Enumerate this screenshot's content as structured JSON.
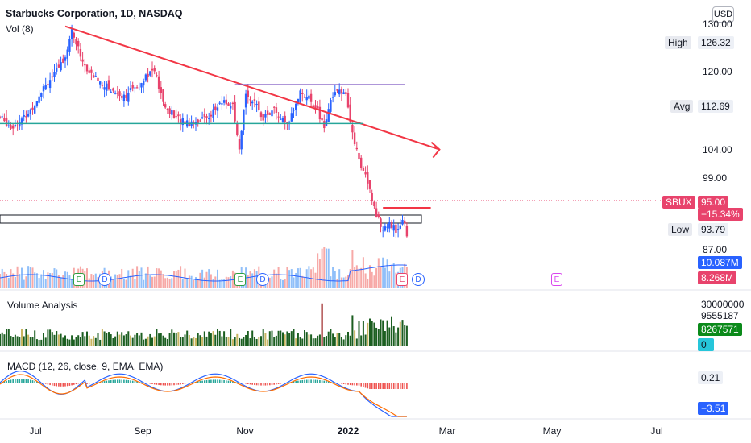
{
  "header": {
    "title": "Starbucks Corporation, 1D, NASDAQ",
    "volume_indicator": "Vol (8)",
    "currency": "USD"
  },
  "panes": {
    "volume_analysis_label": "Volume Analysis",
    "macd_label": "MACD (12, 26, close, 9, EMA, EMA)"
  },
  "price_axis": {
    "ticks": [
      "130.00",
      "120.00",
      "104.00",
      "99.00",
      "87.00"
    ],
    "high_key": "High",
    "high_value": "126.32",
    "avg_key": "Avg",
    "avg_value": "112.69",
    "symbol": "SBUX",
    "last_price": "95.00",
    "change_pct": "−15.34%",
    "low_key": "Low",
    "low_value": "93.79",
    "vol_ma": "10.087M",
    "vol_last": "8.268M",
    "va_clipped": "30000000",
    "va_value1": "9555187",
    "va_value2": "8267571",
    "va_zero": "0",
    "macd_signal": "0.21",
    "macd_value": "−3.51"
  },
  "time_axis": {
    "labels": [
      "Jul",
      "Sep",
      "Nov",
      "2022",
      "Mar",
      "May",
      "Jul"
    ]
  },
  "events": {
    "earnings": "E",
    "dividend": "D"
  },
  "colors": {
    "up": "#2962ff",
    "down": "#e8436c",
    "trend_red": "#f23645",
    "support_teal": "#26a69a",
    "resistance_purple": "#7e57c2",
    "vol_ma_line": "#2962ff",
    "va_bar": "#1b5e20",
    "macd_line": "#2962ff",
    "signal_line": "#ff6d00"
  },
  "chart_data": {
    "type": "candlestick",
    "symbol": "SBUX",
    "exchange": "NASDAQ",
    "interval": "1D",
    "x_labels": [
      "Jul",
      "Sep",
      "Nov",
      "2022",
      "Mar",
      "May",
      "Jul"
    ],
    "price_ticks": [
      130.0,
      120.0,
      104.0,
      99.0,
      87.0
    ],
    "stats": {
      "high": 126.32,
      "avg": 112.69,
      "low": 93.79,
      "last": 95.0,
      "change_pct": -15.34
    },
    "close_path": [
      {
        "d": 0,
        "c": 113.0
      },
      {
        "d": 10,
        "c": 111.5
      },
      {
        "d": 20,
        "c": 112.5
      },
      {
        "d": 30,
        "c": 114.5
      },
      {
        "d": 40,
        "c": 117.8
      },
      {
        "d": 50,
        "c": 119.5
      },
      {
        "d": 60,
        "c": 122.5
      },
      {
        "d": 66,
        "c": 126.3
      },
      {
        "d": 72,
        "c": 123.5
      },
      {
        "d": 80,
        "c": 120.0
      },
      {
        "d": 92,
        "c": 118.5
      },
      {
        "d": 102,
        "c": 117.2
      },
      {
        "d": 114,
        "c": 116.2
      },
      {
        "d": 124,
        "c": 117.5
      },
      {
        "d": 134,
        "c": 119.5
      },
      {
        "d": 142,
        "c": 120.3
      },
      {
        "d": 150,
        "c": 115.0
      },
      {
        "d": 162,
        "c": 112.8
      },
      {
        "d": 174,
        "c": 112.2
      },
      {
        "d": 184,
        "c": 112.5
      },
      {
        "d": 194,
        "c": 113.5
      },
      {
        "d": 206,
        "c": 115.5
      },
      {
        "d": 214,
        "c": 114.5
      },
      {
        "d": 220,
        "c": 107.5
      },
      {
        "d": 226,
        "c": 117.0
      },
      {
        "d": 232,
        "c": 115.5
      },
      {
        "d": 242,
        "c": 113.0
      },
      {
        "d": 252,
        "c": 114.0
      },
      {
        "d": 264,
        "c": 111.5
      },
      {
        "d": 276,
        "c": 117.0
      },
      {
        "d": 286,
        "c": 115.5
      },
      {
        "d": 292,
        "c": 114.0
      },
      {
        "d": 298,
        "c": 111.0
      },
      {
        "d": 304,
        "c": 115.5
      },
      {
        "d": 312,
        "c": 117.3
      },
      {
        "d": 318,
        "c": 116.0
      },
      {
        "d": 324,
        "c": 111.0
      },
      {
        "d": 330,
        "c": 106.0
      },
      {
        "d": 334,
        "c": 104.5
      },
      {
        "d": 340,
        "c": 102.0
      },
      {
        "d": 346,
        "c": 97.5
      },
      {
        "d": 352,
        "c": 96.0
      },
      {
        "d": 358,
        "c": 96.5
      },
      {
        "d": 364,
        "c": 95.5
      },
      {
        "d": 370,
        "c": 97.5
      },
      {
        "d": 374,
        "c": 95.0
      }
    ],
    "drawings": {
      "downtrend_line": [
        {
          "d": 60,
          "price": 127.0
        },
        {
          "d": 404,
          "price": 108.0
        }
      ],
      "support_teal": {
        "price": 112.0,
        "d_from": 0,
        "d_to": 334
      },
      "resistance_purple": {
        "price": 118.0,
        "d_from": 216,
        "d_to": 372
      },
      "resistance_red_short": {
        "price": 99.0,
        "d_from": 352,
        "d_to": 396
      }
    }
  }
}
